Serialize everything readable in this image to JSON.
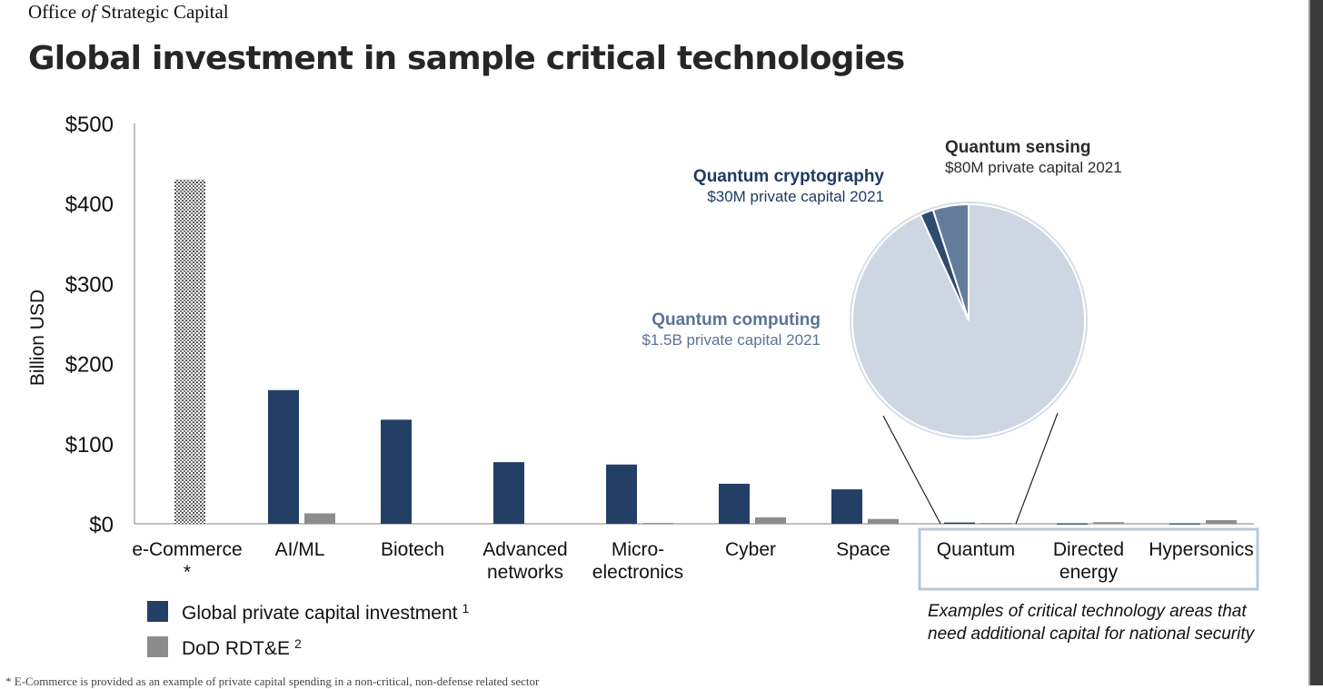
{
  "header": {
    "org_part1": "Office ",
    "org_italic": "of",
    "org_part2": " Strategic Capital",
    "title": "Global investment in sample critical technologies"
  },
  "footnote": "*     E-Commerce is provided as an example of private capital spending in a non-critical, non-defense related sector",
  "chart_data": {
    "type": "bar",
    "ylabel": "Billion USD",
    "ylim": [
      0,
      500
    ],
    "yticks": [
      "$0",
      "$100",
      "$200",
      "$300",
      "$400",
      "$500"
    ],
    "ytick_values": [
      0,
      100,
      200,
      300,
      400,
      500
    ],
    "categories": [
      [
        "e-Commerce",
        "*"
      ],
      [
        "AI/ML"
      ],
      [
        "Biotech"
      ],
      [
        "Advanced",
        "networks"
      ],
      [
        "Micro-",
        "electronics"
      ],
      [
        "Cyber"
      ],
      [
        "Space"
      ],
      [
        "Quantum"
      ],
      [
        "Directed",
        "energy"
      ],
      [
        "Hypersonics"
      ]
    ],
    "series": [
      {
        "name": "Global private capital investment",
        "superscript": "1",
        "color": "#243f66",
        "values": [
          430,
          167,
          130,
          77,
          74,
          50,
          43,
          1.6,
          0.5,
          0.5
        ],
        "pattern_first": true
      },
      {
        "name": "DoD RDT&E",
        "superscript": "2",
        "color": "#8c8c8c",
        "values": [
          null,
          13,
          null,
          null,
          1,
          8,
          6,
          1,
          2,
          4.5
        ]
      }
    ],
    "legend": "bottom-left",
    "highlight_note": [
      "Examples of critical technology areas that",
      "need additional capital for national security"
    ],
    "pie": {
      "subject": "Quantum",
      "slices": [
        {
          "label": "Quantum computing",
          "detail": "$1.5B private capital 2021",
          "value": 1500,
          "color": "#cdd6e2",
          "label_color": "#5b7394"
        },
        {
          "label": "Quantum cryptography",
          "detail": "$30M private capital 2021",
          "value": 30,
          "color": "#2f4a6f",
          "label_color": "#1f3a63"
        },
        {
          "label": "Quantum sensing",
          "detail": "$80M private capital 2021",
          "value": 80,
          "color": "#647c9c",
          "label_color": "#2b2b2b"
        }
      ]
    }
  }
}
